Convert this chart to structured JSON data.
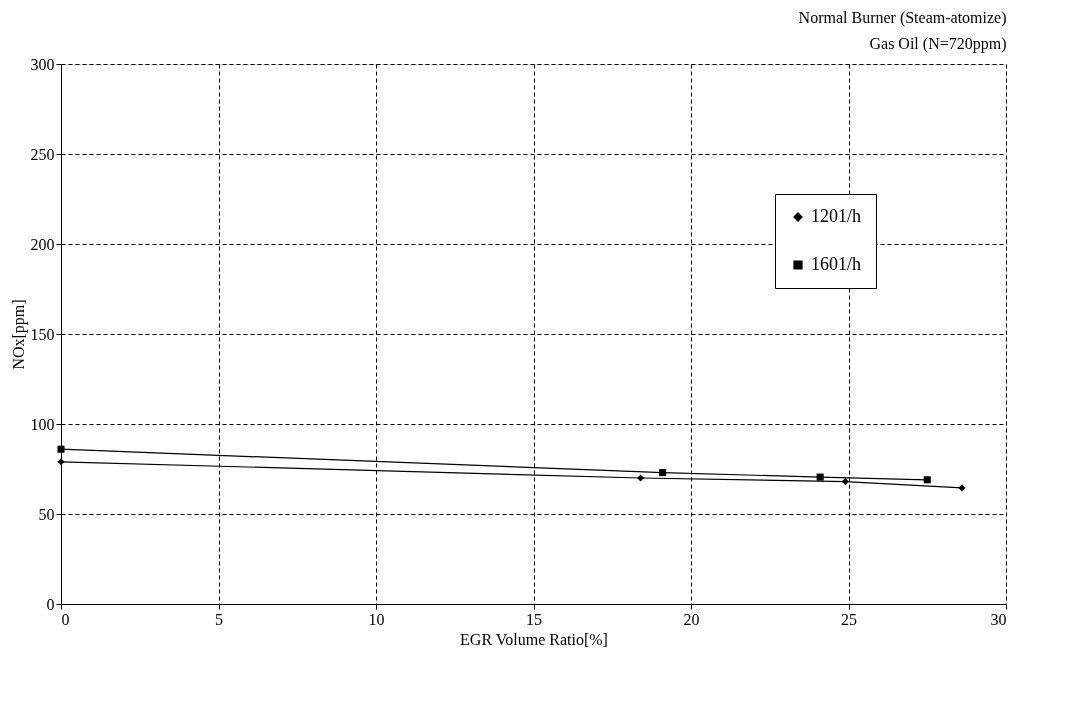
{
  "chart_data": {
    "type": "line",
    "title": "Normal Burner (Steam-atomize)",
    "subtitle": "Gas Oil (N=720ppm)",
    "xlabel": "EGR Volume Ratio[%]",
    "ylabel": "NOx[ppm]",
    "series": [
      {
        "name": "1201/h",
        "color": "#000000",
        "marker": "diamond",
        "x": [
          0,
          18.4,
          24.9,
          28.6
        ],
        "values": [
          79,
          70,
          68,
          64.5
        ]
      },
      {
        "name": "1601/h",
        "color": "#000000",
        "marker": "square",
        "x": [
          0,
          19.1,
          24.1,
          27.5
        ],
        "values": [
          86,
          73,
          70.5,
          69
        ]
      }
    ],
    "xlim": [
      0,
      30
    ],
    "xticks": [
      0,
      5,
      10,
      15,
      20,
      25,
      30
    ],
    "ylim": [
      0,
      300
    ],
    "yticks": [
      0,
      50,
      100,
      150,
      200,
      250,
      300
    ],
    "grid": true,
    "legend": "top right",
    "line_style": "solid"
  }
}
